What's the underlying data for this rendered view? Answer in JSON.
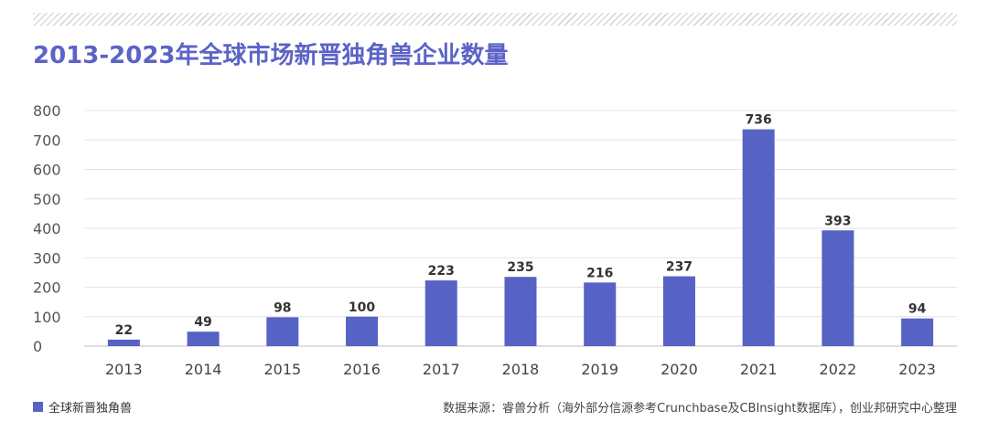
{
  "chart_data": {
    "type": "bar",
    "title": "2013-2023年全球市场新晋独角兽企业数量",
    "categories": [
      "2013",
      "2014",
      "2015",
      "2016",
      "2017",
      "2018",
      "2019",
      "2020",
      "2021",
      "2022",
      "2023"
    ],
    "series": [
      {
        "name": "全球新晋独角兽",
        "values": [
          22,
          49,
          98,
          100,
          223,
          235,
          216,
          237,
          736,
          393,
          94
        ]
      }
    ],
    "ylim": [
      0,
      800
    ],
    "yticks": [
      0,
      100,
      200,
      300,
      400,
      500,
      600,
      700,
      800
    ],
    "grid": true,
    "legend": "bottom-left",
    "bar_color": "#5762c5",
    "source": "数据来源：睿兽分析（海外部分信源参考Crunchbase及CBInsight数据库），创业邦研究中心整理"
  }
}
